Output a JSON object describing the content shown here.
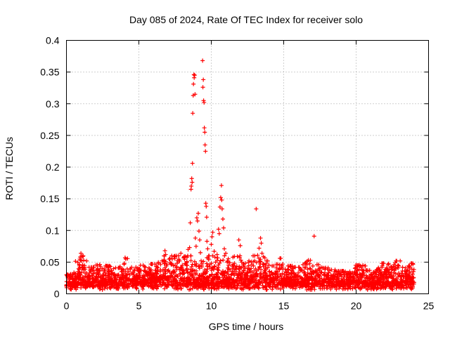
{
  "chart_data": {
    "type": "scatter",
    "title": "Day 085 of 2024, Rate Of TEC Index for receiver solo",
    "xlabel": "GPS time / hours",
    "ylabel": "ROTI / TECUs",
    "xlim": [
      0,
      25
    ],
    "ylim": [
      0,
      0.4
    ],
    "grid": true,
    "marker": "+",
    "color": "#ff0000",
    "xticks": [
      0,
      5,
      10,
      15,
      20,
      25
    ],
    "xtick_labels": [
      "0",
      "5",
      "10",
      "15",
      "20",
      "25"
    ],
    "yticks": [
      0,
      0.05,
      0.1,
      0.15,
      0.2,
      0.25,
      0.3,
      0.35,
      0.4
    ],
    "ytick_labels": [
      "0",
      "0.05",
      "0.1",
      "0.15",
      "0.2",
      "0.25",
      "0.3",
      "0.35",
      "0.4"
    ],
    "series": [
      {
        "name": "ROTI",
        "points": [
          [
            0.0,
            0.012
          ],
          [
            0.1,
            0.025
          ],
          [
            0.2,
            0.018
          ],
          [
            0.3,
            0.031
          ],
          [
            0.4,
            0.015
          ],
          [
            0.5,
            0.022
          ],
          [
            0.6,
            0.028
          ],
          [
            0.7,
            0.019
          ],
          [
            0.8,
            0.035
          ],
          [
            0.9,
            0.045
          ],
          [
            0.95,
            0.058
          ],
          [
            1.0,
            0.064
          ],
          [
            1.05,
            0.052
          ],
          [
            1.1,
            0.041
          ],
          [
            1.2,
            0.026
          ],
          [
            1.3,
            0.02
          ],
          [
            1.4,
            0.033
          ],
          [
            1.5,
            0.024
          ],
          [
            1.6,
            0.017
          ],
          [
            1.7,
            0.038
          ],
          [
            1.8,
            0.029
          ],
          [
            1.9,
            0.042
          ],
          [
            2.0,
            0.021
          ],
          [
            2.1,
            0.034
          ],
          [
            2.2,
            0.027
          ],
          [
            2.3,
            0.046
          ],
          [
            2.4,
            0.019
          ],
          [
            2.5,
            0.03
          ],
          [
            2.6,
            0.023
          ],
          [
            2.7,
            0.044
          ],
          [
            2.8,
            0.018
          ],
          [
            2.9,
            0.036
          ],
          [
            3.0,
            0.025
          ],
          [
            3.1,
            0.032
          ],
          [
            3.2,
            0.019
          ],
          [
            3.3,
            0.028
          ],
          [
            3.4,
            0.041
          ],
          [
            3.5,
            0.016
          ],
          [
            3.6,
            0.03
          ],
          [
            3.7,
            0.022
          ],
          [
            3.8,
            0.035
          ],
          [
            3.9,
            0.027
          ],
          [
            4.0,
            0.048
          ],
          [
            4.05,
            0.057
          ],
          [
            4.1,
            0.055
          ],
          [
            4.2,
            0.031
          ],
          [
            4.3,
            0.024
          ],
          [
            4.4,
            0.039
          ],
          [
            4.5,
            0.02
          ],
          [
            4.6,
            0.033
          ],
          [
            4.7,
            0.026
          ],
          [
            4.8,
            0.042
          ],
          [
            4.9,
            0.018
          ],
          [
            5.0,
            0.03
          ],
          [
            5.1,
            0.037
          ],
          [
            5.2,
            0.022
          ],
          [
            5.3,
            0.045
          ],
          [
            5.4,
            0.028
          ],
          [
            5.5,
            0.034
          ],
          [
            5.6,
            0.019
          ],
          [
            5.7,
            0.041
          ],
          [
            5.8,
            0.025
          ],
          [
            5.9,
            0.047
          ],
          [
            6.0,
            0.031
          ],
          [
            6.1,
            0.023
          ],
          [
            6.2,
            0.043
          ],
          [
            6.3,
            0.035
          ],
          [
            6.4,
            0.02
          ],
          [
            6.5,
            0.038
          ],
          [
            6.6,
            0.052
          ],
          [
            6.7,
            0.029
          ],
          [
            6.8,
            0.068
          ],
          [
            6.85,
            0.062
          ],
          [
            6.9,
            0.044
          ],
          [
            7.0,
            0.036
          ],
          [
            7.1,
            0.025
          ],
          [
            7.2,
            0.048
          ],
          [
            7.3,
            0.055
          ],
          [
            7.4,
            0.033
          ],
          [
            7.5,
            0.06
          ],
          [
            7.6,
            0.041
          ],
          [
            7.7,
            0.028
          ],
          [
            7.8,
            0.052
          ],
          [
            7.9,
            0.064
          ],
          [
            8.0,
            0.045
          ],
          [
            8.1,
            0.037
          ],
          [
            8.2,
            0.059
          ],
          [
            8.3,
            0.049
          ],
          [
            8.4,
            0.07
          ],
          [
            8.5,
            0.073
          ],
          [
            8.55,
            0.112
          ],
          [
            8.6,
            0.165
          ],
          [
            8.62,
            0.17
          ],
          [
            8.65,
            0.182
          ],
          [
            8.68,
            0.176
          ],
          [
            8.7,
            0.206
          ],
          [
            8.72,
            0.285
          ],
          [
            8.75,
            0.313
          ],
          [
            8.77,
            0.331
          ],
          [
            8.8,
            0.346
          ],
          [
            8.82,
            0.341
          ],
          [
            8.85,
            0.345
          ],
          [
            8.88,
            0.315
          ],
          [
            8.9,
            0.088
          ],
          [
            8.95,
            0.075
          ],
          [
            9.0,
            0.12
          ],
          [
            9.05,
            0.115
          ],
          [
            9.1,
            0.127
          ],
          [
            9.15,
            0.099
          ],
          [
            9.2,
            0.085
          ],
          [
            9.25,
            0.065
          ],
          [
            9.3,
            0.052
          ],
          [
            9.35,
            0.048
          ],
          [
            9.4,
            0.368
          ],
          [
            9.42,
            0.326
          ],
          [
            9.45,
            0.338
          ],
          [
            9.47,
            0.305
          ],
          [
            9.5,
            0.302
          ],
          [
            9.52,
            0.262
          ],
          [
            9.55,
            0.255
          ],
          [
            9.57,
            0.235
          ],
          [
            9.6,
            0.225
          ],
          [
            9.62,
            0.143
          ],
          [
            9.65,
            0.138
          ],
          [
            9.68,
            0.121
          ],
          [
            9.7,
            0.083
          ],
          [
            9.75,
            0.071
          ],
          [
            9.8,
            0.056
          ],
          [
            9.85,
            0.06
          ],
          [
            9.9,
            0.046
          ],
          [
            10.0,
            0.078
          ],
          [
            10.05,
            0.09
          ],
          [
            10.1,
            0.097
          ],
          [
            10.2,
            0.067
          ],
          [
            10.3,
            0.05
          ],
          [
            10.4,
            0.062
          ],
          [
            10.5,
            0.102
          ],
          [
            10.55,
            0.095
          ],
          [
            10.6,
            0.137
          ],
          [
            10.65,
            0.152
          ],
          [
            10.7,
            0.171
          ],
          [
            10.72,
            0.148
          ],
          [
            10.75,
            0.134
          ],
          [
            10.8,
            0.118
          ],
          [
            10.85,
            0.104
          ],
          [
            10.9,
            0.071
          ],
          [
            11.0,
            0.064
          ],
          [
            11.1,
            0.05
          ],
          [
            11.2,
            0.045
          ],
          [
            11.3,
            0.038
          ],
          [
            11.4,
            0.031
          ],
          [
            11.5,
            0.04
          ],
          [
            11.6,
            0.048
          ],
          [
            11.7,
            0.035
          ],
          [
            11.8,
            0.059
          ],
          [
            11.9,
            0.085
          ],
          [
            12.0,
            0.076
          ],
          [
            12.1,
            0.05
          ],
          [
            12.2,
            0.044
          ],
          [
            12.3,
            0.031
          ],
          [
            12.4,
            0.027
          ],
          [
            12.5,
            0.04
          ],
          [
            12.6,
            0.052
          ],
          [
            12.7,
            0.035
          ],
          [
            12.8,
            0.046
          ],
          [
            12.9,
            0.03
          ],
          [
            13.0,
            0.052
          ],
          [
            13.1,
            0.134
          ],
          [
            13.2,
            0.061
          ],
          [
            13.3,
            0.072
          ],
          [
            13.4,
            0.088
          ],
          [
            13.45,
            0.08
          ],
          [
            13.5,
            0.064
          ],
          [
            13.6,
            0.043
          ],
          [
            13.7,
            0.037
          ],
          [
            13.8,
            0.052
          ],
          [
            13.9,
            0.028
          ],
          [
            14.0,
            0.035
          ],
          [
            14.1,
            0.03
          ],
          [
            14.2,
            0.044
          ],
          [
            14.3,
            0.025
          ],
          [
            14.4,
            0.033
          ],
          [
            14.5,
            0.041
          ],
          [
            14.6,
            0.027
          ],
          [
            14.7,
            0.038
          ],
          [
            14.8,
            0.056
          ],
          [
            14.9,
            0.032
          ],
          [
            15.0,
            0.025
          ],
          [
            15.1,
            0.039
          ],
          [
            15.2,
            0.03
          ],
          [
            15.3,
            0.044
          ],
          [
            15.4,
            0.022
          ],
          [
            15.5,
            0.031
          ],
          [
            15.6,
            0.036
          ],
          [
            15.7,
            0.028
          ],
          [
            15.8,
            0.042
          ],
          [
            15.9,
            0.019
          ],
          [
            16.0,
            0.033
          ],
          [
            16.1,
            0.027
          ],
          [
            16.2,
            0.038
          ],
          [
            16.3,
            0.024
          ],
          [
            16.4,
            0.035
          ],
          [
            16.5,
            0.029
          ],
          [
            16.6,
            0.046
          ],
          [
            16.7,
            0.053
          ],
          [
            16.8,
            0.04
          ],
          [
            16.9,
            0.031
          ],
          [
            17.0,
            0.025
          ],
          [
            17.1,
            0.091
          ],
          [
            17.2,
            0.037
          ],
          [
            17.3,
            0.046
          ],
          [
            17.4,
            0.039
          ],
          [
            17.5,
            0.028
          ],
          [
            17.6,
            0.034
          ],
          [
            17.7,
            0.02
          ],
          [
            17.8,
            0.03
          ],
          [
            17.9,
            0.041
          ],
          [
            18.0,
            0.025
          ],
          [
            18.1,
            0.033
          ],
          [
            18.2,
            0.022
          ],
          [
            18.3,
            0.038
          ],
          [
            18.4,
            0.029
          ],
          [
            18.5,
            0.035
          ],
          [
            18.6,
            0.019
          ],
          [
            18.7,
            0.031
          ],
          [
            18.8,
            0.024
          ],
          [
            18.9,
            0.036
          ],
          [
            19.0,
            0.027
          ],
          [
            19.1,
            0.021
          ],
          [
            19.2,
            0.033
          ],
          [
            19.3,
            0.018
          ],
          [
            19.4,
            0.03
          ],
          [
            19.5,
            0.025
          ],
          [
            19.6,
            0.032
          ],
          [
            19.7,
            0.02
          ],
          [
            19.8,
            0.028
          ],
          [
            19.9,
            0.035
          ],
          [
            20.0,
            0.022
          ],
          [
            20.1,
            0.031
          ],
          [
            20.2,
            0.045
          ],
          [
            20.3,
            0.044
          ],
          [
            20.4,
            0.026
          ],
          [
            20.5,
            0.033
          ],
          [
            20.6,
            0.02
          ],
          [
            20.7,
            0.029
          ],
          [
            20.8,
            0.037
          ],
          [
            20.9,
            0.023
          ],
          [
            21.0,
            0.031
          ],
          [
            21.1,
            0.026
          ],
          [
            21.2,
            0.034
          ],
          [
            21.3,
            0.021
          ],
          [
            21.4,
            0.03
          ],
          [
            21.5,
            0.025
          ],
          [
            21.6,
            0.038
          ],
          [
            21.7,
            0.032
          ],
          [
            21.8,
            0.044
          ],
          [
            21.9,
            0.048
          ],
          [
            22.0,
            0.034
          ],
          [
            22.1,
            0.041
          ],
          [
            22.2,
            0.046
          ],
          [
            22.3,
            0.039
          ],
          [
            22.4,
            0.03
          ],
          [
            22.5,
            0.025
          ],
          [
            22.6,
            0.033
          ],
          [
            22.7,
            0.049
          ],
          [
            22.8,
            0.052
          ],
          [
            22.9,
            0.045
          ],
          [
            23.0,
            0.029
          ],
          [
            23.1,
            0.023
          ],
          [
            23.2,
            0.036
          ],
          [
            23.3,
            0.027
          ],
          [
            23.4,
            0.032
          ],
          [
            23.5,
            0.02
          ],
          [
            23.6,
            0.029
          ],
          [
            23.7,
            0.041
          ],
          [
            23.8,
            0.048
          ],
          [
            23.85,
            0.039
          ],
          [
            23.9,
            0.031
          ],
          [
            23.95,
            0.025
          ],
          [
            24.0,
            0.018
          ]
        ]
      }
    ]
  }
}
